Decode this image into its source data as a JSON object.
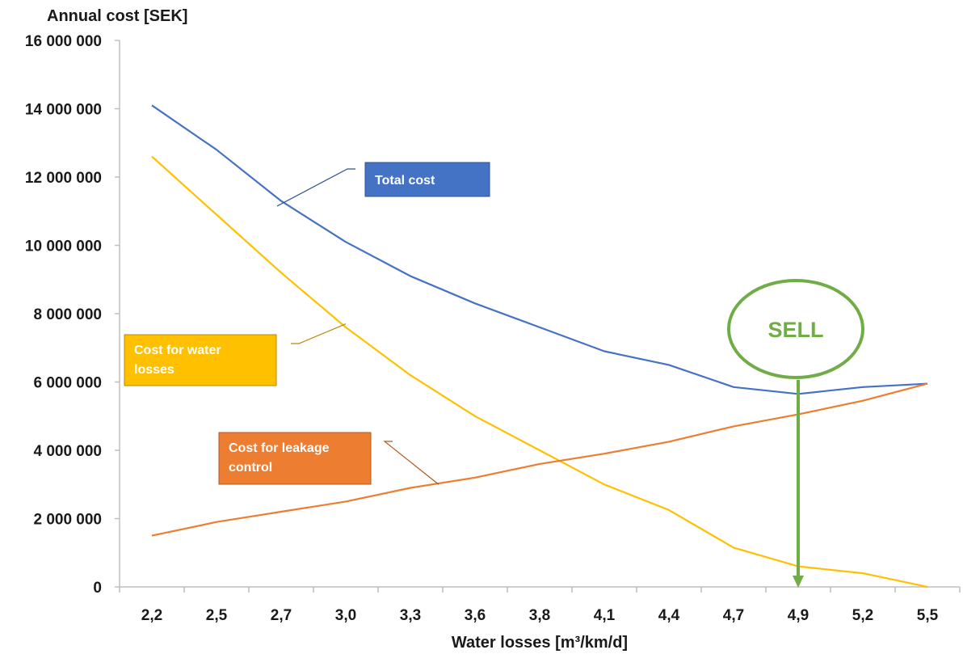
{
  "chart_data": {
    "type": "line",
    "title": "",
    "ylabel": "Annual cost [SEK]",
    "xlabel": "Water losses [m³/km/d]",
    "ylim": [
      0,
      16000000
    ],
    "yticks": [
      "0",
      "2 000 000",
      "4 000 000",
      "6 000 000",
      "8 000 000",
      "10 000 000",
      "12 000 000",
      "14 000 000",
      "16 000 000"
    ],
    "ytick_values": [
      0,
      2000000,
      4000000,
      6000000,
      8000000,
      10000000,
      12000000,
      14000000,
      16000000
    ],
    "categories": [
      "2,2",
      "2,5",
      "2,7",
      "3,0",
      "3,3",
      "3,6",
      "3,8",
      "4,1",
      "4,4",
      "4,7",
      "4,9",
      "5,2",
      "5,5"
    ],
    "grid": false,
    "series": [
      {
        "name": "Total cost",
        "color": "#4472c4",
        "values": [
          14100000,
          12800000,
          11300000,
          10100000,
          9100000,
          8300000,
          7600000,
          6900000,
          6500000,
          5850000,
          5650000,
          5850000,
          5950000
        ]
      },
      {
        "name": "Cost for water losses",
        "color": "#ffc000",
        "values": [
          12600000,
          10900000,
          9200000,
          7600000,
          6200000,
          5000000,
          4000000,
          3000000,
          2250000,
          1150000,
          600000,
          400000,
          0
        ]
      },
      {
        "name": "Cost for leakage control",
        "color": "#ed7d31",
        "values": [
          1500000,
          1900000,
          2200000,
          2500000,
          2900000,
          3200000,
          3600000,
          3900000,
          4250000,
          4700000,
          5050000,
          5450000,
          5950000
        ]
      }
    ],
    "callouts": [
      {
        "series": 0,
        "lines": [
          "Total cost"
        ],
        "fill": "#4472c4",
        "border": "#2f528f"
      },
      {
        "series": 1,
        "lines": [
          "Cost for water",
          "losses"
        ],
        "fill": "#ffc000",
        "border": "#b8860b"
      },
      {
        "series": 2,
        "lines": [
          "Cost for leakage",
          "control"
        ],
        "fill": "#ed7d31",
        "border": "#b35a1f"
      }
    ],
    "annotation": {
      "label": "SELL",
      "color": "#70ad47",
      "category_index": 10
    },
    "axis_color": "#bfbfbf"
  }
}
